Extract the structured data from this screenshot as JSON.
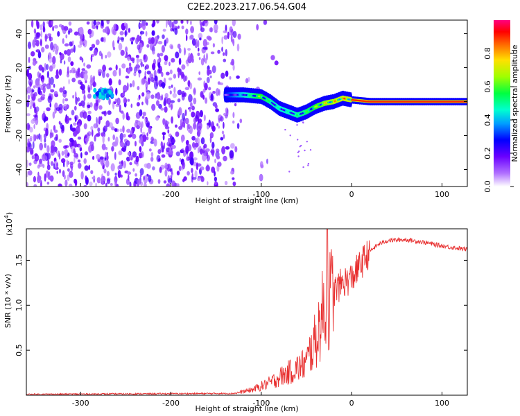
{
  "title": "C2E2.2023.217.06.54.G04",
  "chart_data": [
    {
      "type": "heatmap",
      "xlabel": "Height of straight line (km)",
      "ylabel": "Frequency (Hz)",
      "xlim": [
        -360,
        128
      ],
      "ylim": [
        -50,
        48
      ],
      "x_ticks": [
        -300,
        -200,
        -100,
        0,
        100
      ],
      "y_ticks": [
        -40,
        -20,
        0,
        20,
        40
      ],
      "grid": false,
      "colorbar": {
        "label": "Normalized spectral amplitude",
        "range": [
          0.0,
          1.0
        ],
        "ticks": [
          "0.0",
          "0.2",
          "0.4",
          "0.6",
          "0.8"
        ]
      },
      "signal_track": {
        "x": [
          -140,
          -120,
          -100,
          -90,
          -80,
          -70,
          -60,
          -50,
          -40,
          -30,
          -20,
          -10,
          0,
          20,
          60,
          100,
          128
        ],
        "freq": [
          4,
          4,
          3,
          0,
          -4,
          -6,
          -8,
          -6,
          -3,
          -1,
          0,
          2,
          1,
          0,
          0,
          0,
          0
        ],
        "amplitude": [
          0.2,
          0.45,
          0.7,
          0.55,
          0.5,
          0.5,
          0.55,
          0.6,
          0.7,
          0.8,
          0.85,
          0.9,
          0.9,
          0.9,
          0.9,
          0.9,
          0.9
        ]
      }
    },
    {
      "type": "line",
      "xlabel": "Height of straight line (km)",
      "ylabel": "SNR (10 * v/v)",
      "y_scale_label": "(x10",
      "y_scale_exp": "4",
      "xlim": [
        -360,
        128
      ],
      "ylim": [
        0.0,
        1.85
      ],
      "x_ticks": [
        -300,
        -200,
        -100,
        0,
        100
      ],
      "y_ticks": [
        "0.5",
        "1.0",
        "1.5"
      ],
      "y_tick_values": [
        0.5,
        1.0,
        1.5
      ],
      "grid": false,
      "color": "#e83030",
      "envelope": {
        "x": [
          -360,
          -130,
          -110,
          -90,
          -80,
          -70,
          -60,
          -50,
          -45,
          -40,
          -35,
          -30,
          -25,
          -20,
          -10,
          0,
          10,
          20,
          30,
          40,
          60,
          80,
          100,
          128
        ],
        "y": [
          0.01,
          0.02,
          0.06,
          0.14,
          0.2,
          0.25,
          0.3,
          0.36,
          0.5,
          0.6,
          0.8,
          1.0,
          1.05,
          1.15,
          1.25,
          1.3,
          1.45,
          1.6,
          1.68,
          1.72,
          1.73,
          1.7,
          1.66,
          1.62
        ]
      },
      "peak": {
        "x": -27,
        "y": 1.85
      }
    }
  ]
}
